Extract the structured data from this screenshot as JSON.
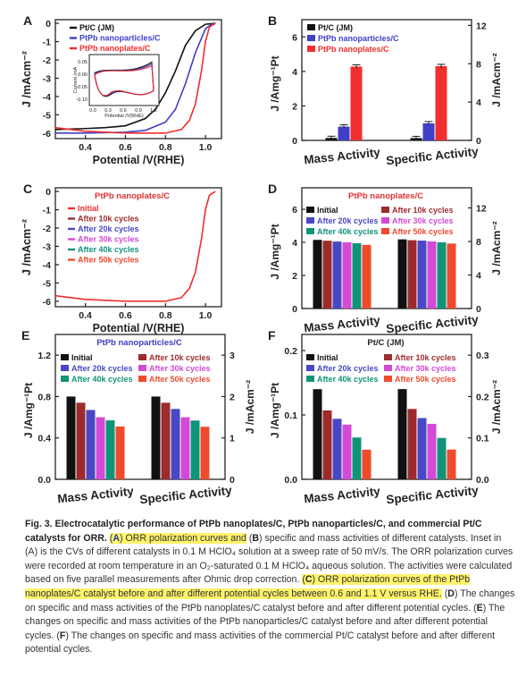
{
  "colors": {
    "black": "#111111",
    "blue": "#3f3fc8",
    "red": "#f02e2e",
    "darkred": "#9e2b2b",
    "purple": "#4848c6",
    "magenta": "#d24ad6",
    "teal": "#109478",
    "orange": "#f04a2e",
    "axis": "#222222",
    "title_red": "#e03030",
    "title_blue": "#3c3cc0"
  },
  "chart_data": [
    {
      "panel": "A",
      "type": "line",
      "xlabel": "Potential /V(RHE)",
      "ylabel": "J /mAcm⁻²",
      "xlim": [
        0.25,
        1.08
      ],
      "ylim": [
        -6.3,
        0.2
      ],
      "xticks": [
        "0.4",
        "0.6",
        "0.8",
        "1.0"
      ],
      "yticks": [
        "0",
        "-1",
        "-2",
        "-3",
        "-4",
        "-5",
        "-6"
      ],
      "series": [
        {
          "name": "Pt/C (JM)",
          "x": [
            0.25,
            0.4,
            0.5,
            0.6,
            0.7,
            0.75,
            0.8,
            0.85,
            0.9,
            0.95,
            1.0,
            1.05
          ],
          "y": [
            -5.8,
            -5.75,
            -5.7,
            -5.6,
            -5.2,
            -4.7,
            -3.8,
            -2.6,
            -1.2,
            -0.4,
            -0.05,
            0
          ]
        },
        {
          "name": "PtPb nanoparticles/C",
          "x": [
            0.25,
            0.4,
            0.6,
            0.7,
            0.8,
            0.85,
            0.9,
            0.95,
            1.0,
            1.03,
            1.05
          ],
          "y": [
            -6.0,
            -6.0,
            -5.95,
            -5.85,
            -5.4,
            -4.7,
            -3.3,
            -1.6,
            -0.3,
            -0.05,
            0
          ]
        },
        {
          "name": "PtPb nanoplates/C",
          "x": [
            0.25,
            0.4,
            0.6,
            0.8,
            0.88,
            0.92,
            0.95,
            0.98,
            1.0,
            1.02,
            1.05
          ],
          "y": [
            -5.7,
            -5.9,
            -6.0,
            -6.0,
            -5.8,
            -5.3,
            -4.4,
            -2.6,
            -1.0,
            -0.2,
            0
          ]
        }
      ],
      "inset": {
        "ylabel": "Current /mA",
        "xlabel": "Potential /V(RHE)",
        "xticks": [
          "0.0",
          "0.3",
          "0.6",
          "0.9",
          "1.2"
        ],
        "yticks": [
          "0.05",
          "0.00",
          "-0.05",
          "-0.10"
        ]
      }
    },
    {
      "panel": "B",
      "type": "bar",
      "categories": [
        "Mass Activity",
        "Specific Activity"
      ],
      "ylabel": "J /Amg⁻¹Pt",
      "y2label": "J /mAcm⁻²",
      "ylim": [
        0,
        7
      ],
      "y2lim": [
        0,
        12.6
      ],
      "yticks": [
        "0",
        "2",
        "4",
        "6"
      ],
      "y2ticks": [
        "0",
        "4",
        "8",
        "12"
      ],
      "series": [
        {
          "name": "Pt/C (JM)",
          "values": [
            0.14,
            0.24
          ]
        },
        {
          "name": "PtPb nanoparticles/C",
          "values": [
            0.8,
            1.78
          ]
        },
        {
          "name": "PtPb nanoplates/C",
          "values": [
            4.28,
            7.75
          ]
        }
      ]
    },
    {
      "panel": "C",
      "type": "line",
      "title": "PtPb nanoplates/C",
      "xlabel": "Potential /V(RHE)",
      "ylabel": "J /mAcm⁻²",
      "xlim": [
        0.25,
        1.08
      ],
      "ylim": [
        -6.3,
        0.2
      ],
      "xticks": [
        "0.4",
        "0.6",
        "0.8",
        "1.0"
      ],
      "yticks": [
        "0",
        "-1",
        "-2",
        "-3",
        "-4",
        "-5",
        "-6"
      ],
      "legend": [
        "Initial",
        "After 10k cycles",
        "After 20k cycles",
        "After 30k cycles",
        "After 40k cycles",
        "After 50k cycles"
      ],
      "series": [
        {
          "name": "Initial",
          "x": [
            0.25,
            0.4,
            0.6,
            0.8,
            0.88,
            0.92,
            0.95,
            0.98,
            1.0,
            1.02,
            1.05
          ],
          "y": [
            -5.7,
            -5.9,
            -6.0,
            -6.0,
            -5.8,
            -5.3,
            -4.4,
            -2.6,
            -1.0,
            -0.2,
            0
          ]
        }
      ]
    },
    {
      "panel": "D",
      "type": "bar",
      "title": "PtPb nanoplates/C",
      "categories": [
        "Mass Activity",
        "Specific Activity"
      ],
      "ylabel": "J /Amg⁻¹Pt",
      "y2label": "J /mAcm⁻²",
      "ylim": [
        0,
        7.3
      ],
      "y2lim": [
        0,
        14.4
      ],
      "yticks": [
        "0",
        "2",
        "4",
        "6"
      ],
      "y2ticks": [
        "0",
        "4",
        "8",
        "12"
      ],
      "legend": [
        "Initial",
        "After 10k cycles",
        "After 20k cycles",
        "After 30k cycles",
        "After 40k cycles",
        "After 50k cycles"
      ],
      "series": [
        {
          "name": "Initial",
          "values": [
            4.15,
            8.25
          ]
        },
        {
          "name": "After 10k cycles",
          "values": [
            4.1,
            8.15
          ]
        },
        {
          "name": "After 20k cycles",
          "values": [
            4.05,
            8.1
          ]
        },
        {
          "name": "After 30k cycles",
          "values": [
            4.0,
            8.0
          ]
        },
        {
          "name": "After 40k cycles",
          "values": [
            3.95,
            7.9
          ]
        },
        {
          "name": "After 50k cycles",
          "values": [
            3.85,
            7.75
          ]
        }
      ]
    },
    {
      "panel": "E",
      "type": "bar",
      "title": "PtPb nanoparticles/C",
      "categories": [
        "Mass Activity",
        "Specific Activity"
      ],
      "ylabel": "J /Amg⁻¹Pt",
      "y2label": "J /mAcm⁻²",
      "ylim": [
        0,
        1.4
      ],
      "y2lim": [
        0,
        3.5
      ],
      "yticks": [
        "0.0",
        "0.4",
        "0.8",
        "1.2"
      ],
      "y2ticks": [
        "0",
        "1",
        "2",
        "3"
      ],
      "legend": [
        "Initial",
        "After 10k cycles",
        "After 20k cycles",
        "After 30k cycles",
        "After 40k cycles",
        "After 50k cycles"
      ],
      "series": [
        {
          "name": "Initial",
          "values": [
            0.8,
            2.0
          ]
        },
        {
          "name": "After 10k cycles",
          "values": [
            0.74,
            1.85
          ]
        },
        {
          "name": "After 20k cycles",
          "values": [
            0.67,
            1.7
          ]
        },
        {
          "name": "After 30k cycles",
          "values": [
            0.6,
            1.5
          ]
        },
        {
          "name": "After 40k cycles",
          "values": [
            0.57,
            1.42
          ]
        },
        {
          "name": "After 50k cycles",
          "values": [
            0.51,
            1.27
          ]
        }
      ]
    },
    {
      "panel": "F",
      "type": "bar",
      "title": "Pt/C (JM)",
      "categories": [
        "Mass Activity",
        "Specific Activity"
      ],
      "ylabel": "J /Amg⁻¹Pt",
      "y2label": "J /mAcm⁻²",
      "ylim": [
        0,
        0.225
      ],
      "y2lim": [
        0,
        0.35
      ],
      "yticks": [
        "0.0",
        "0.1",
        "0.2"
      ],
      "y2ticks": [
        "0.0",
        "0.1",
        "0.2",
        "0.3"
      ],
      "legend": [
        "Initial",
        "After 10k cycles",
        "After 20k cycles",
        "After 30k cycles",
        "After 40k cycles",
        "After 50k cycles"
      ],
      "series": [
        {
          "name": "Initial",
          "values": [
            0.14,
            0.218
          ]
        },
        {
          "name": "After 10k cycles",
          "values": [
            0.107,
            0.17
          ]
        },
        {
          "name": "After 20k cycles",
          "values": [
            0.094,
            0.148
          ]
        },
        {
          "name": "After 30k cycles",
          "values": [
            0.085,
            0.134
          ]
        },
        {
          "name": "After 40k cycles",
          "values": [
            0.065,
            0.1
          ]
        },
        {
          "name": "After 50k cycles",
          "values": [
            0.046,
            0.072
          ]
        }
      ]
    }
  ],
  "caption": {
    "lead": "Fig. 3. Electrocatalytic performance of PtPb nanoplates/C, PtPb nanoparticles/C, and commercial Pt/C catalysts for ORR.",
    "A_label": "A",
    "A_text": ") ORR polarization curves and",
    "B_label": "B",
    "B_text": ") specific and mass activities of different catalysts. Inset in (A) is the CVs of different catalysts in 0.1 M HClO₄ solution at a sweep rate of 50 mV/s. The ORR polarization curves were recorded at room temperature in an O₂-saturated 0.1 M HClO₄ aqueous solution. The activities were calculated based on five parallel measurements after Ohmic drop correction.",
    "C_label": "C",
    "C_text": ") ORR polarization curves of the PtPb nanoplates/C catalyst before and after different potential cycles between 0.6 and 1.1 V versus RHE.",
    "D_label": "D",
    "D_text": ") The changes on specific and mass activities of the PtPb nanoplates/C catalyst before and after different potential cycles.",
    "E_label": "E",
    "E_text": ") The changes on specific and mass activities of the PtPb nanoparticles/C catalyst before and after different potential cycles.",
    "F_label": "F",
    "F_text": ") The changes on specific and mass activities of the commercial Pt/C catalyst before and after different potential cycles."
  }
}
